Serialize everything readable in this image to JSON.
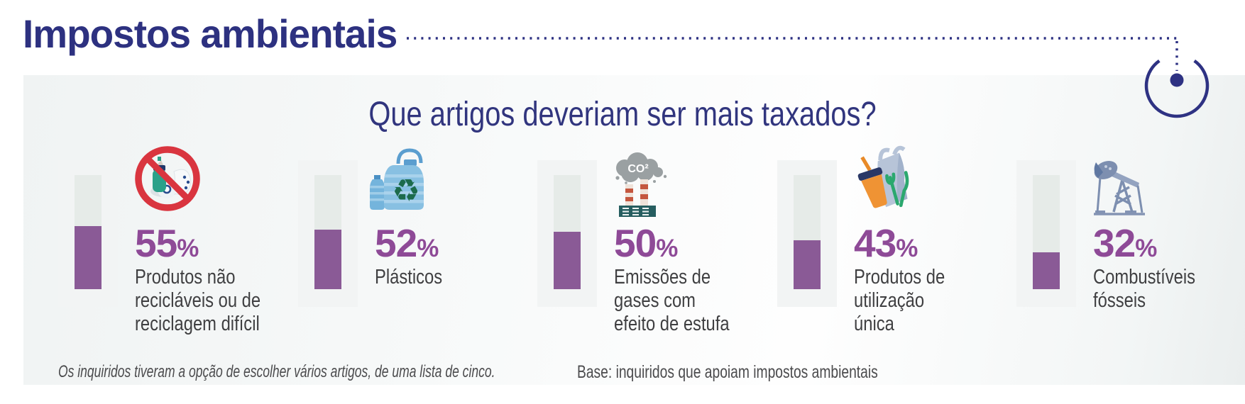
{
  "title": "Impostos ambientais",
  "question": "Que artigos deveriam ser mais taxados?",
  "footnotes": {
    "method": "Os inquiridos tiveram a opção de escolher vários artigos, de uma lista de cinco.",
    "base": "Base: inquiridos que apoiam impostos ambientais"
  },
  "chart_data": {
    "type": "bar",
    "title": "Que artigos deveriam ser mais taxados?",
    "unit": "%",
    "ylim": [
      0,
      100
    ],
    "orientation": "vertical-thermometer",
    "categories": [
      "Produtos não recicláveis ou de reciclagem difícil",
      "Plásticos",
      "Emissões de gases com efeito de estufa",
      "Produtos de utilização única",
      "Combustíveis fósseis"
    ],
    "values": [
      55,
      52,
      50,
      43,
      32
    ],
    "label_lines": [
      [
        "Produtos não",
        "recicláveis ou de",
        "reciclagem difícil"
      ],
      [
        "Plásticos"
      ],
      [
        "Emissões de",
        "gases com",
        "efeito de estufa"
      ],
      [
        "Produtos de",
        "utilização",
        "única"
      ],
      [
        "Combustíveis",
        "fósseis"
      ]
    ],
    "icons": [
      "no-recyclables-icon",
      "plastics-icon",
      "co2-emissions-icon",
      "single-use-products-icon",
      "fossil-fuels-icon"
    ]
  },
  "colors": {
    "navy": "#2e3283",
    "percent_purple": "#8e4a97",
    "bar_fill": "#8a5a96",
    "bar_empty": "#e6ebe8",
    "strip": "#f2f4f4",
    "label_gray": "#3f3f41",
    "footnote_gray": "#4b4b4d",
    "prohibition_red": "#d9353f"
  }
}
